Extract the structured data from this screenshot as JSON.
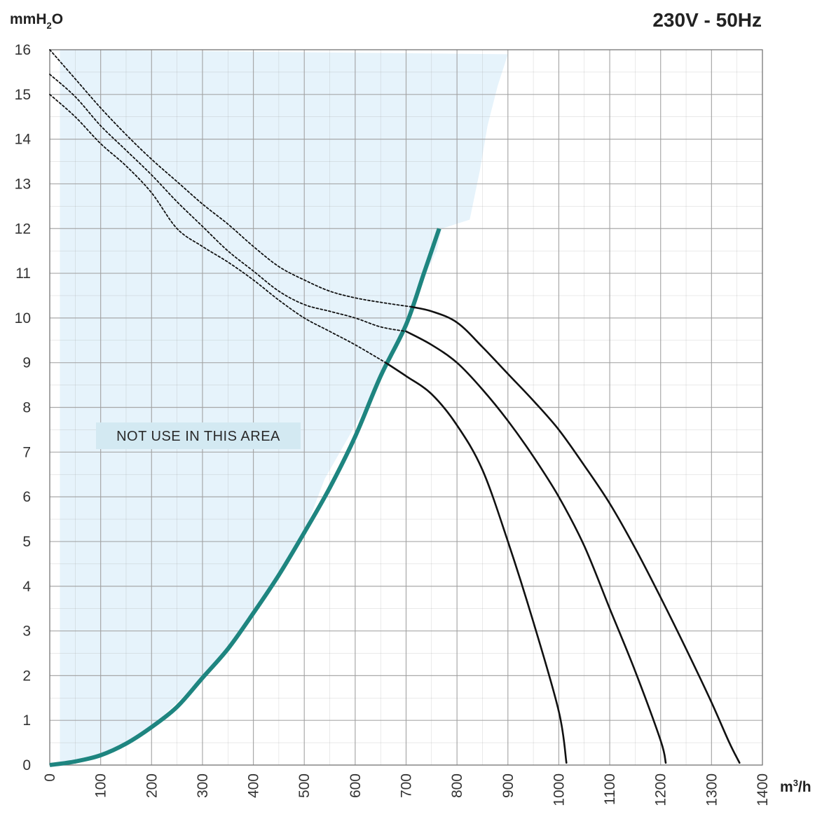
{
  "chart_data": {
    "type": "line",
    "subtitle": "230V - 50Hz",
    "ylabel_main": "mmH",
    "ylabel_sub": "2",
    "ylabel_end": "O",
    "xunit_main": "m",
    "xunit_sup": "3",
    "xunit_end": "/h",
    "xlim": [
      0,
      1400
    ],
    "ylim": [
      0,
      16
    ],
    "x_ticks": [
      "0",
      "100",
      "200",
      "300",
      "400",
      "500",
      "600",
      "700",
      "800",
      "900",
      "1000",
      "1100",
      "1200",
      "1300",
      "1400"
    ],
    "y_ticks": [
      "0",
      "1",
      "2",
      "3",
      "4",
      "5",
      "6",
      "7",
      "8",
      "9",
      "10",
      "11",
      "12",
      "13",
      "14",
      "15",
      "16"
    ],
    "grid": true,
    "annotation": "NOT USE IN THIS AREA",
    "colors": {
      "limit_curve": "#1e8580",
      "fan_curve": "#111111",
      "restricted_area": "#e6f3fb",
      "annotation_box": "#d3e9f2",
      "grid": "#a0a0a0"
    },
    "restricted_area_boundary": [
      [
        20,
        0
      ],
      [
        20,
        16
      ],
      [
        900,
        15.9
      ],
      [
        880,
        15.2
      ],
      [
        860,
        14.3
      ],
      [
        845,
        13.3
      ],
      [
        825,
        12.2
      ],
      [
        770,
        12
      ],
      [
        760,
        11.5
      ],
      [
        730,
        10.8
      ],
      [
        705,
        10
      ],
      [
        660,
        9
      ],
      [
        620,
        8
      ],
      [
        585,
        7.3
      ],
      [
        540,
        6.4
      ],
      [
        500,
        5.2
      ],
      [
        450,
        4.2
      ],
      [
        380,
        3.1
      ],
      [
        300,
        1.95
      ],
      [
        200,
        0.85
      ],
      [
        100,
        0.22
      ],
      [
        20,
        0
      ]
    ],
    "series": [
      {
        "style": "solid",
        "points": [
          [
            0,
            0
          ],
          [
            50,
            0.08
          ],
          [
            100,
            0.22
          ],
          [
            150,
            0.48
          ],
          [
            200,
            0.85
          ],
          [
            250,
            1.3
          ],
          [
            300,
            1.95
          ],
          [
            350,
            2.6
          ],
          [
            400,
            3.4
          ],
          [
            450,
            4.25
          ],
          [
            500,
            5.2
          ],
          [
            550,
            6.2
          ],
          [
            600,
            7.35
          ],
          [
            650,
            8.7
          ],
          [
            700,
            9.85
          ],
          [
            735,
            11
          ],
          [
            765,
            12
          ]
        ]
      },
      {
        "style": "dotted",
        "points": [
          [
            0,
            15
          ],
          [
            50,
            14.5
          ],
          [
            100,
            13.9
          ],
          [
            150,
            13.4
          ],
          [
            200,
            12.8
          ],
          [
            250,
            12
          ],
          [
            300,
            11.6
          ],
          [
            350,
            11.25
          ],
          [
            400,
            10.85
          ],
          [
            450,
            10.4
          ],
          [
            500,
            10
          ],
          [
            550,
            9.7
          ],
          [
            600,
            9.4
          ],
          [
            660,
            9
          ]
        ]
      },
      {
        "style": "solid",
        "points": [
          [
            660,
            9
          ],
          [
            700,
            8.7
          ],
          [
            750,
            8.3
          ],
          [
            800,
            7.6
          ],
          [
            850,
            6.6
          ],
          [
            900,
            5
          ],
          [
            950,
            3.2
          ],
          [
            1000,
            1.2
          ],
          [
            1015,
            0.05
          ]
        ]
      },
      {
        "style": "dotted",
        "points": [
          [
            0,
            15.45
          ],
          [
            50,
            14.95
          ],
          [
            100,
            14.3
          ],
          [
            150,
            13.75
          ],
          [
            200,
            13.2
          ],
          [
            250,
            12.6
          ],
          [
            300,
            12.05
          ],
          [
            350,
            11.5
          ],
          [
            400,
            11.05
          ],
          [
            450,
            10.6
          ],
          [
            500,
            10.3
          ],
          [
            550,
            10.15
          ],
          [
            600,
            10
          ],
          [
            650,
            9.8
          ],
          [
            700,
            9.7
          ]
        ]
      },
      {
        "style": "solid",
        "points": [
          [
            700,
            9.7
          ],
          [
            750,
            9.4
          ],
          [
            800,
            9
          ],
          [
            850,
            8.4
          ],
          [
            900,
            7.7
          ],
          [
            950,
            6.9
          ],
          [
            1000,
            6
          ],
          [
            1050,
            4.9
          ],
          [
            1100,
            3.5
          ],
          [
            1150,
            2.1
          ],
          [
            1200,
            0.55
          ],
          [
            1210,
            0.05
          ]
        ]
      },
      {
        "style": "dotted",
        "points": [
          [
            0,
            16
          ],
          [
            50,
            15.35
          ],
          [
            100,
            14.7
          ],
          [
            150,
            14.1
          ],
          [
            200,
            13.55
          ],
          [
            250,
            13.05
          ],
          [
            300,
            12.55
          ],
          [
            350,
            12.1
          ],
          [
            400,
            11.6
          ],
          [
            450,
            11.15
          ],
          [
            500,
            10.85
          ],
          [
            550,
            10.6
          ],
          [
            600,
            10.45
          ],
          [
            650,
            10.35
          ],
          [
            710,
            10.25
          ]
        ]
      },
      {
        "style": "solid",
        "points": [
          [
            710,
            10.25
          ],
          [
            750,
            10.15
          ],
          [
            800,
            9.9
          ],
          [
            850,
            9.35
          ],
          [
            900,
            8.75
          ],
          [
            950,
            8.15
          ],
          [
            1000,
            7.5
          ],
          [
            1050,
            6.7
          ],
          [
            1100,
            5.85
          ],
          [
            1150,
            4.85
          ],
          [
            1200,
            3.75
          ],
          [
            1250,
            2.6
          ],
          [
            1300,
            1.4
          ],
          [
            1335,
            0.5
          ],
          [
            1355,
            0.05
          ]
        ]
      }
    ]
  }
}
